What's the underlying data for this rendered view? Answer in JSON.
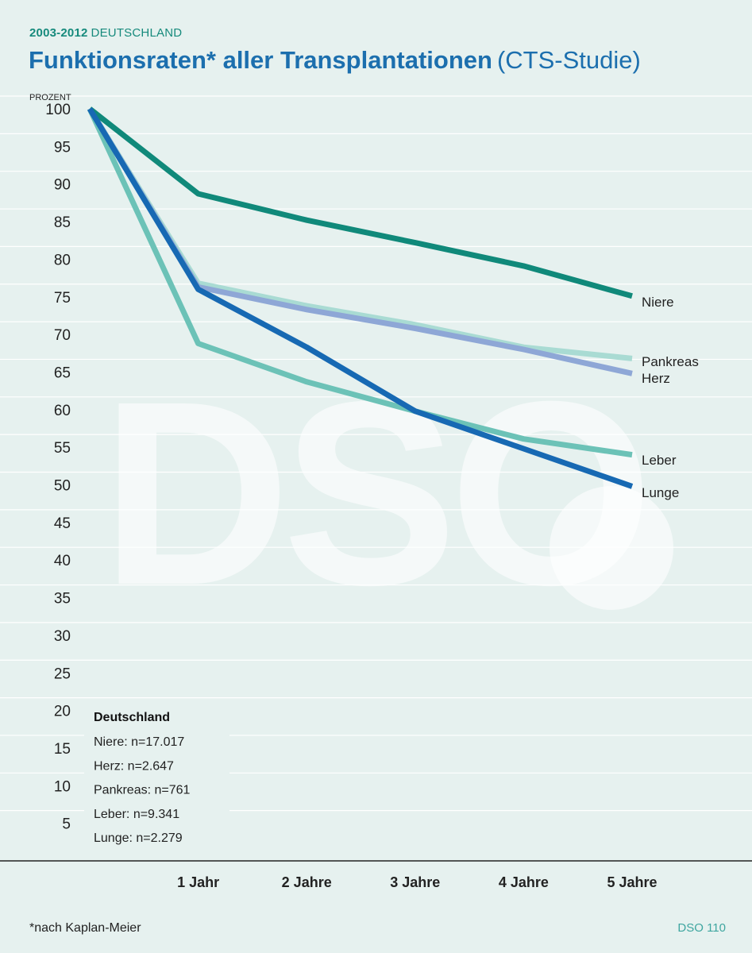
{
  "header": {
    "years": "2003-2012",
    "region": "DEUTSCHLAND",
    "title_main": "Funktionsraten* aller Transplantationen",
    "title_sub": "(CTS-Studie)"
  },
  "footer": {
    "footnote": "*nach Kaplan-Meier",
    "page_ref": "DSO 110"
  },
  "watermark": "DSO",
  "colors": {
    "background": "#e6f1ef",
    "niere": "#10897a",
    "pankreas": "#a9dbd3",
    "herz": "#8ea7d6",
    "leber": "#6cc2b7",
    "lunge": "#1769b3",
    "title": "#1c6fae"
  },
  "chart_data": {
    "type": "line",
    "ylabel": "PROZENT",
    "ylim": [
      0,
      100
    ],
    "yticks": [
      5,
      10,
      15,
      20,
      25,
      30,
      35,
      40,
      45,
      50,
      55,
      60,
      65,
      70,
      75,
      80,
      85,
      90,
      95,
      100
    ],
    "categories": [
      "",
      "1 Jahr",
      "2 Jahre",
      "3 Jahre",
      "4 Jahre",
      "5 Jahre"
    ],
    "series": [
      {
        "name": "Niere",
        "color": "#10897a",
        "values": [
          100,
          88.7,
          85.2,
          82.2,
          79.1,
          75.1
        ]
      },
      {
        "name": "Pankreas",
        "color": "#a9dbd3",
        "values": [
          100,
          76.8,
          73.8,
          71.3,
          68.3,
          66.8
        ]
      },
      {
        "name": "Herz",
        "color": "#8ea7d6",
        "values": [
          100,
          76.3,
          73.3,
          70.8,
          68.0,
          64.8
        ]
      },
      {
        "name": "Leber",
        "color": "#6cc2b7",
        "values": [
          100,
          68.8,
          63.7,
          59.8,
          56.1,
          54.0
        ]
      },
      {
        "name": "Lunge",
        "color": "#1769b3",
        "values": [
          100,
          76.0,
          68.3,
          59.8,
          54.8,
          49.8
        ]
      }
    ],
    "legend_box": {
      "title": "Deutschland",
      "entries": [
        "Niere: n=17.017",
        "Herz: n=2.647",
        "Pankreas: n=761",
        "Leber: n=9.341",
        "Lunge: n=2.279"
      ]
    }
  }
}
